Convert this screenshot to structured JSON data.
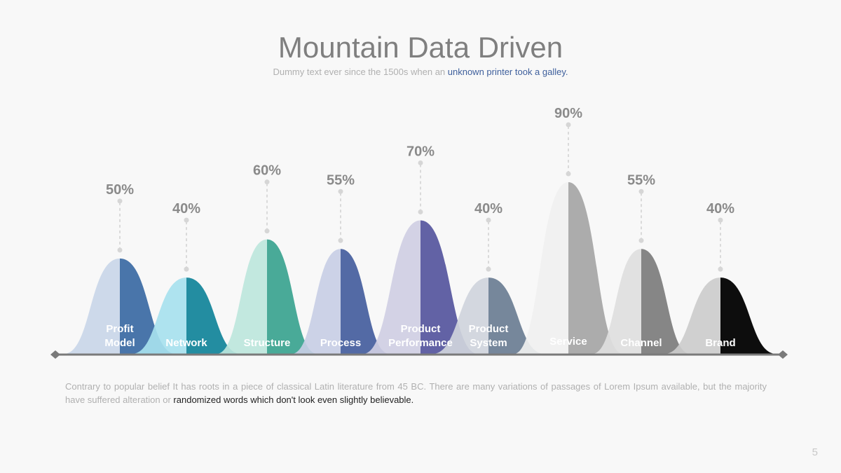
{
  "header": {
    "title": "Mountain Data Driven",
    "subtitle_plain": "Dummy text ever since the 1500s when an ",
    "subtitle_highlight": "unknown printer took a galley."
  },
  "chart_data": {
    "type": "area",
    "categories": [
      [
        "Profit",
        "Model"
      ],
      [
        "Network"
      ],
      [
        "Structure"
      ],
      [
        "Process"
      ],
      [
        "Product",
        "Performance"
      ],
      [
        "Product",
        "System"
      ],
      [
        "Service"
      ],
      [
        "Channel"
      ],
      [
        "Brand"
      ]
    ],
    "values": [
      50,
      40,
      60,
      55,
      70,
      40,
      90,
      55,
      40
    ],
    "value_labels": [
      "50%",
      "40%",
      "60%",
      "55%",
      "70%",
      "40%",
      "90%",
      "55%",
      "40%"
    ],
    "colors": [
      {
        "light": "#c9d6e8",
        "dark": "#3f6ea5"
      },
      {
        "light": "#a7e1ee",
        "dark": "#17879c"
      },
      {
        "light": "#bde6dc",
        "dark": "#3fa592"
      },
      {
        "light": "#c8cee5",
        "dark": "#4a62a0"
      },
      {
        "light": "#cfcee3",
        "dark": "#5a5aa0"
      },
      {
        "light": "#cfd4dc",
        "dark": "#6f8196"
      },
      {
        "light": "#f0f0f0",
        "dark": "#a8a8a8"
      },
      {
        "light": "#dedede",
        "dark": "#7f7f7f"
      },
      {
        "light": "#cccccc",
        "dark": "#000000"
      }
    ],
    "ylim": [
      0,
      100
    ],
    "grid": false,
    "legend": "none"
  },
  "body": {
    "text_plain": "Contrary to popular belief It has roots in a piece of classical Latin literature from 45 BC. There are many variations of passages of Lorem Ipsum available, but the majority have suffered alteration or ",
    "text_dark": "randomized words which don't look even slightly believable."
  },
  "footer": {
    "page_number": "5"
  }
}
